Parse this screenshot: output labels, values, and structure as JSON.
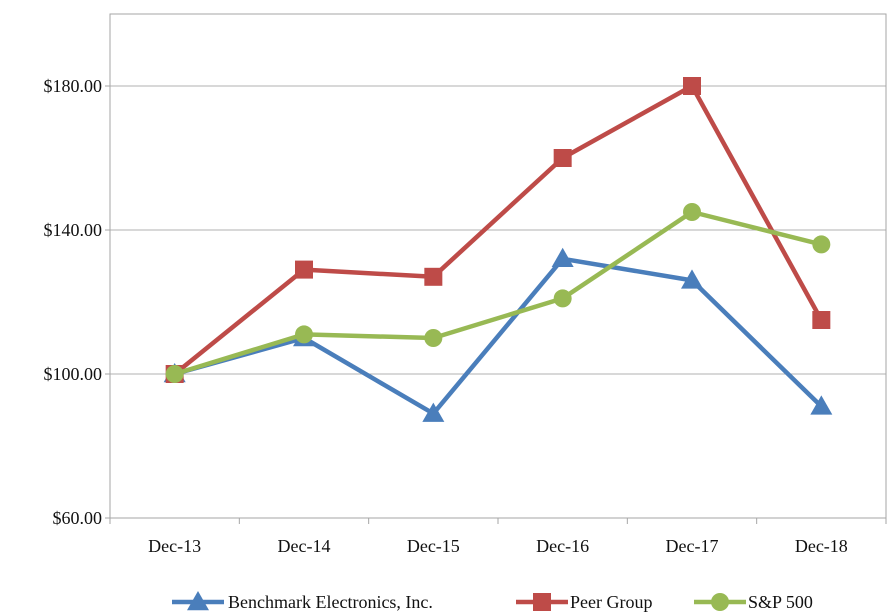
{
  "chart_data": {
    "type": "line",
    "categories": [
      "Dec-13",
      "Dec-14",
      "Dec-15",
      "Dec-16",
      "Dec-17",
      "Dec-18"
    ],
    "ylim": [
      60,
      180
    ],
    "y_ticks": [
      60,
      100,
      140,
      180
    ],
    "y_tick_labels": [
      "$60.00",
      "$100.00",
      "$140.00",
      "$180.00"
    ],
    "grid": true,
    "legend_position": "bottom",
    "series": [
      {
        "name": "Benchmark Electronics, Inc.",
        "color": "#4a7ebb",
        "marker": "triangle",
        "values": [
          100,
          110,
          89,
          132,
          126,
          91
        ]
      },
      {
        "name": "Peer Group",
        "color": "#be4b48",
        "marker": "square",
        "values": [
          100,
          129,
          127,
          160,
          180,
          115
        ]
      },
      {
        "name": "S&P 500",
        "color": "#98b954",
        "marker": "circle",
        "values": [
          100,
          111,
          110,
          121,
          145,
          136
        ]
      }
    ]
  }
}
